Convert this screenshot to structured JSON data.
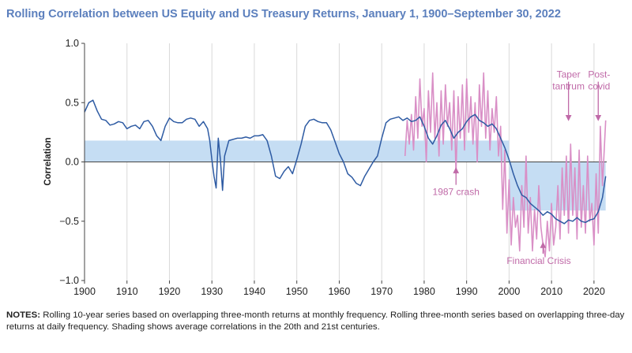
{
  "title": "Rolling Correlation between US Equity and US Treasury Returns, January 1, 1900–September 30, 2022",
  "notes": {
    "label": "NOTES:",
    "text": " Rolling 10-year series based on overlapping three-month returns at monthly frequency. Rolling three-month series based on overlapping three-day returns at daily frequency. Shading shows average correlations in the 20th and 21st centuries."
  },
  "colors": {
    "ten_year": "#2e5ba3",
    "three_month": "#d98fc6",
    "shading": "#c5ddf3",
    "annotation": "#c06aa8"
  },
  "chart_data": {
    "type": "line",
    "title": "Rolling Correlation between US Equity and US Treasury Returns, January 1, 1900–September 30, 2022",
    "xlabel": "",
    "ylabel": "Correlation",
    "xlim": [
      1900,
      2023
    ],
    "ylim": [
      -1.0,
      1.0
    ],
    "xticks": [
      "1900",
      "1910",
      "1920",
      "1930",
      "1940",
      "1950",
      "1960",
      "1970",
      "1980",
      "1990",
      "2000",
      "2010",
      "2020"
    ],
    "yticks": [
      "1.0",
      "0.5",
      "0.0",
      "−0.5",
      "−1.0"
    ],
    "grid": "vertical",
    "shading": [
      {
        "from": 1900,
        "to": 2000,
        "value": 0.18
      },
      {
        "from": 2000,
        "to": 2022.75,
        "value": -0.41
      }
    ],
    "series": [
      {
        "key": "ten_year",
        "x": [
          1900,
          1901,
          1902,
          1903,
          1904,
          1905,
          1906,
          1907,
          1908,
          1909,
          1910,
          1911,
          1912,
          1913,
          1914,
          1915,
          1916,
          1917,
          1918,
          1919,
          1920,
          1921,
          1922,
          1923,
          1924,
          1925,
          1926,
          1927,
          1928,
          1929,
          1929.5,
          1930,
          1930.5,
          1931,
          1931.5,
          1932,
          1932.5,
          1933,
          1934,
          1935,
          1936,
          1937,
          1938,
          1939,
          1940,
          1941,
          1942,
          1943,
          1944,
          1945,
          1946,
          1947,
          1948,
          1949,
          1950,
          1951,
          1952,
          1953,
          1954,
          1955,
          1956,
          1957,
          1958,
          1959,
          1960,
          1961,
          1962,
          1963,
          1964,
          1965,
          1966,
          1967,
          1968,
          1969,
          1970,
          1971,
          1972,
          1973,
          1974,
          1975,
          1976,
          1977,
          1978,
          1979,
          1980,
          1981,
          1982,
          1983,
          1984,
          1985,
          1986,
          1987,
          1988,
          1989,
          1990,
          1991,
          1992,
          1993,
          1994,
          1995,
          1996,
          1997,
          1998,
          1999,
          2000,
          2001,
          2002,
          2003,
          2004,
          2005,
          2006,
          2007,
          2008,
          2009,
          2010,
          2011,
          2012,
          2013,
          2014,
          2015,
          2016,
          2017,
          2018,
          2019,
          2020,
          2021,
          2022,
          2022.75
        ],
        "values": [
          0.42,
          0.5,
          0.52,
          0.43,
          0.36,
          0.35,
          0.31,
          0.32,
          0.34,
          0.33,
          0.28,
          0.3,
          0.31,
          0.28,
          0.34,
          0.35,
          0.3,
          0.22,
          0.18,
          0.3,
          0.37,
          0.34,
          0.33,
          0.33,
          0.36,
          0.37,
          0.36,
          0.3,
          0.34,
          0.28,
          0.18,
          0.02,
          -0.12,
          -0.22,
          0.2,
          0.02,
          -0.24,
          0.05,
          0.18,
          0.19,
          0.2,
          0.2,
          0.21,
          0.2,
          0.22,
          0.22,
          0.23,
          0.18,
          0.05,
          -0.12,
          -0.14,
          -0.08,
          -0.04,
          -0.1,
          0.02,
          0.15,
          0.3,
          0.35,
          0.36,
          0.34,
          0.33,
          0.33,
          0.27,
          0.17,
          0.07,
          0.0,
          -0.1,
          -0.13,
          -0.18,
          -0.2,
          -0.12,
          -0.06,
          0.0,
          0.05,
          0.2,
          0.33,
          0.36,
          0.37,
          0.38,
          0.35,
          0.37,
          0.34,
          0.35,
          0.38,
          0.3,
          0.2,
          0.15,
          0.22,
          0.31,
          0.35,
          0.28,
          0.2,
          0.25,
          0.28,
          0.34,
          0.38,
          0.4,
          0.35,
          0.33,
          0.3,
          0.32,
          0.28,
          0.2,
          0.12,
          0.02,
          -0.1,
          -0.2,
          -0.28,
          -0.3,
          -0.35,
          -0.38,
          -0.41,
          -0.45,
          -0.42,
          -0.44,
          -0.48,
          -0.5,
          -0.52,
          -0.49,
          -0.5,
          -0.47,
          -0.5,
          -0.51,
          -0.49,
          -0.48,
          -0.42,
          -0.3,
          -0.12
        ]
      },
      {
        "key": "three_month",
        "x": [
          1975.5,
          1976,
          1976.5,
          1977,
          1977.5,
          1978,
          1978.5,
          1979,
          1979.5,
          1980,
          1980.5,
          1981,
          1981.5,
          1982,
          1982.5,
          1983,
          1983.5,
          1984,
          1984.5,
          1985,
          1985.5,
          1986,
          1986.5,
          1987,
          1987.5,
          1988,
          1988.5,
          1989,
          1989.5,
          1990,
          1990.5,
          1991,
          1991.5,
          1992,
          1992.5,
          1993,
          1993.5,
          1994,
          1994.5,
          1995,
          1995.5,
          1996,
          1996.5,
          1997,
          1997.5,
          1998,
          1998.5,
          1999,
          1999.5,
          2000,
          2000.5,
          2001,
          2001.5,
          2002,
          2002.5,
          2003,
          2003.5,
          2004,
          2004.5,
          2005,
          2005.5,
          2006,
          2006.5,
          2007,
          2007.5,
          2008,
          2008.5,
          2009,
          2009.5,
          2010,
          2010.5,
          2011,
          2011.5,
          2012,
          2012.5,
          2013,
          2013.5,
          2014,
          2014.5,
          2015,
          2015.5,
          2016,
          2016.5,
          2017,
          2017.5,
          2018,
          2018.5,
          2019,
          2019.5,
          2020,
          2020.5,
          2021,
          2021.5,
          2022,
          2022.75
        ],
        "values": [
          0.05,
          0.35,
          0.15,
          0.4,
          0.1,
          0.55,
          0.2,
          0.7,
          0.3,
          0.45,
          0.0,
          0.6,
          0.25,
          0.75,
          0.2,
          0.5,
          0.05,
          0.6,
          0.15,
          0.65,
          0.3,
          0.5,
          0.1,
          0.6,
          -0.1,
          0.55,
          0.2,
          0.65,
          0.1,
          0.7,
          0.25,
          0.55,
          0.15,
          0.5,
          0.0,
          0.65,
          0.3,
          0.75,
          0.2,
          0.6,
          0.1,
          0.45,
          0.25,
          0.55,
          0.05,
          0.3,
          -0.4,
          0.1,
          -0.6,
          -0.15,
          -0.7,
          -0.3,
          -0.55,
          -0.45,
          -0.75,
          -0.2,
          -0.55,
          0.05,
          -0.6,
          -0.3,
          -0.75,
          -0.4,
          -0.65,
          -0.2,
          -0.55,
          -0.7,
          -0.8,
          -0.5,
          -0.75,
          -0.35,
          -0.7,
          -0.55,
          -0.2,
          -0.65,
          -0.05,
          -0.45,
          0.05,
          -0.6,
          0.15,
          -0.45,
          -0.05,
          -0.65,
          0.1,
          -0.55,
          -0.2,
          -0.6,
          0.05,
          -0.5,
          -0.35,
          -0.7,
          -0.1,
          -0.6,
          0.3,
          -0.2,
          0.35
        ]
      }
    ],
    "annotations": [
      {
        "text": "1987 crash",
        "x": 1987.5,
        "y": -0.28,
        "arrow_to": [
          1987.5,
          -0.07
        ],
        "anchor": "middle"
      },
      {
        "text": "Financial Crisis",
        "x": 2007,
        "y": -0.86,
        "arrow_to": [
          2008,
          -0.7
        ],
        "anchor": "middle"
      },
      {
        "text": "Taper",
        "x": 2014,
        "y": 0.71,
        "arrow_to": [
          2014,
          0.37
        ],
        "anchor": "middle"
      },
      {
        "text": "tantrum",
        "x": 2014,
        "y": 0.61,
        "anchor": "middle"
      },
      {
        "text": "Post-",
        "x": 2021.2,
        "y": 0.71,
        "arrow_to": [
          2021,
          0.37
        ],
        "anchor": "middle"
      },
      {
        "text": "covid",
        "x": 2021.2,
        "y": 0.61,
        "anchor": "middle"
      }
    ]
  }
}
